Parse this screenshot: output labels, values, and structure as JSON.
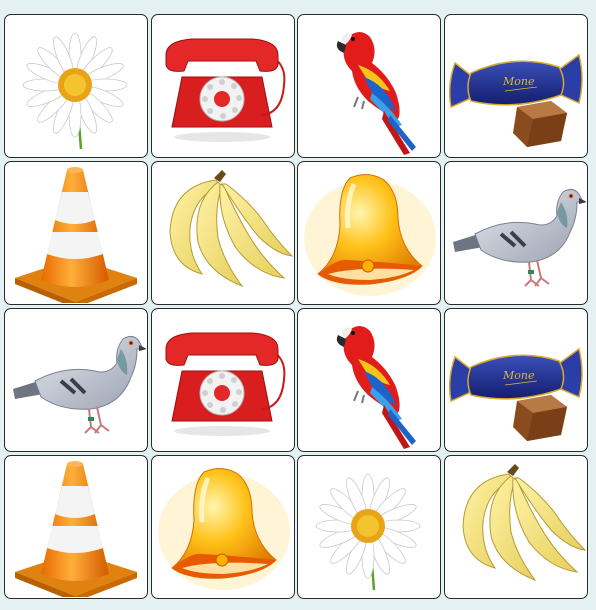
{
  "game": {
    "type": "memory-match",
    "columns": 4,
    "rows": 4,
    "cards": [
      {
        "icon": "daisy-icon"
      },
      {
        "icon": "telephone-icon"
      },
      {
        "icon": "parrot-icon"
      },
      {
        "icon": "candy-icon"
      },
      {
        "icon": "traffic-cone-icon"
      },
      {
        "icon": "banana-icon"
      },
      {
        "icon": "bell-icon"
      },
      {
        "icon": "pigeon-icon"
      },
      {
        "icon": "pigeon-icon"
      },
      {
        "icon": "telephone-icon"
      },
      {
        "icon": "parrot-icon"
      },
      {
        "icon": "candy-icon"
      },
      {
        "icon": "traffic-cone-icon"
      },
      {
        "icon": "bell-icon"
      },
      {
        "icon": "daisy-icon"
      },
      {
        "icon": "banana-icon"
      }
    ]
  },
  "colors": {
    "background": "#e3f1f2",
    "card": "#ffffff",
    "card_border": "#2b2b2b"
  },
  "icons": {
    "candy_wrapper_text": "Mone"
  }
}
